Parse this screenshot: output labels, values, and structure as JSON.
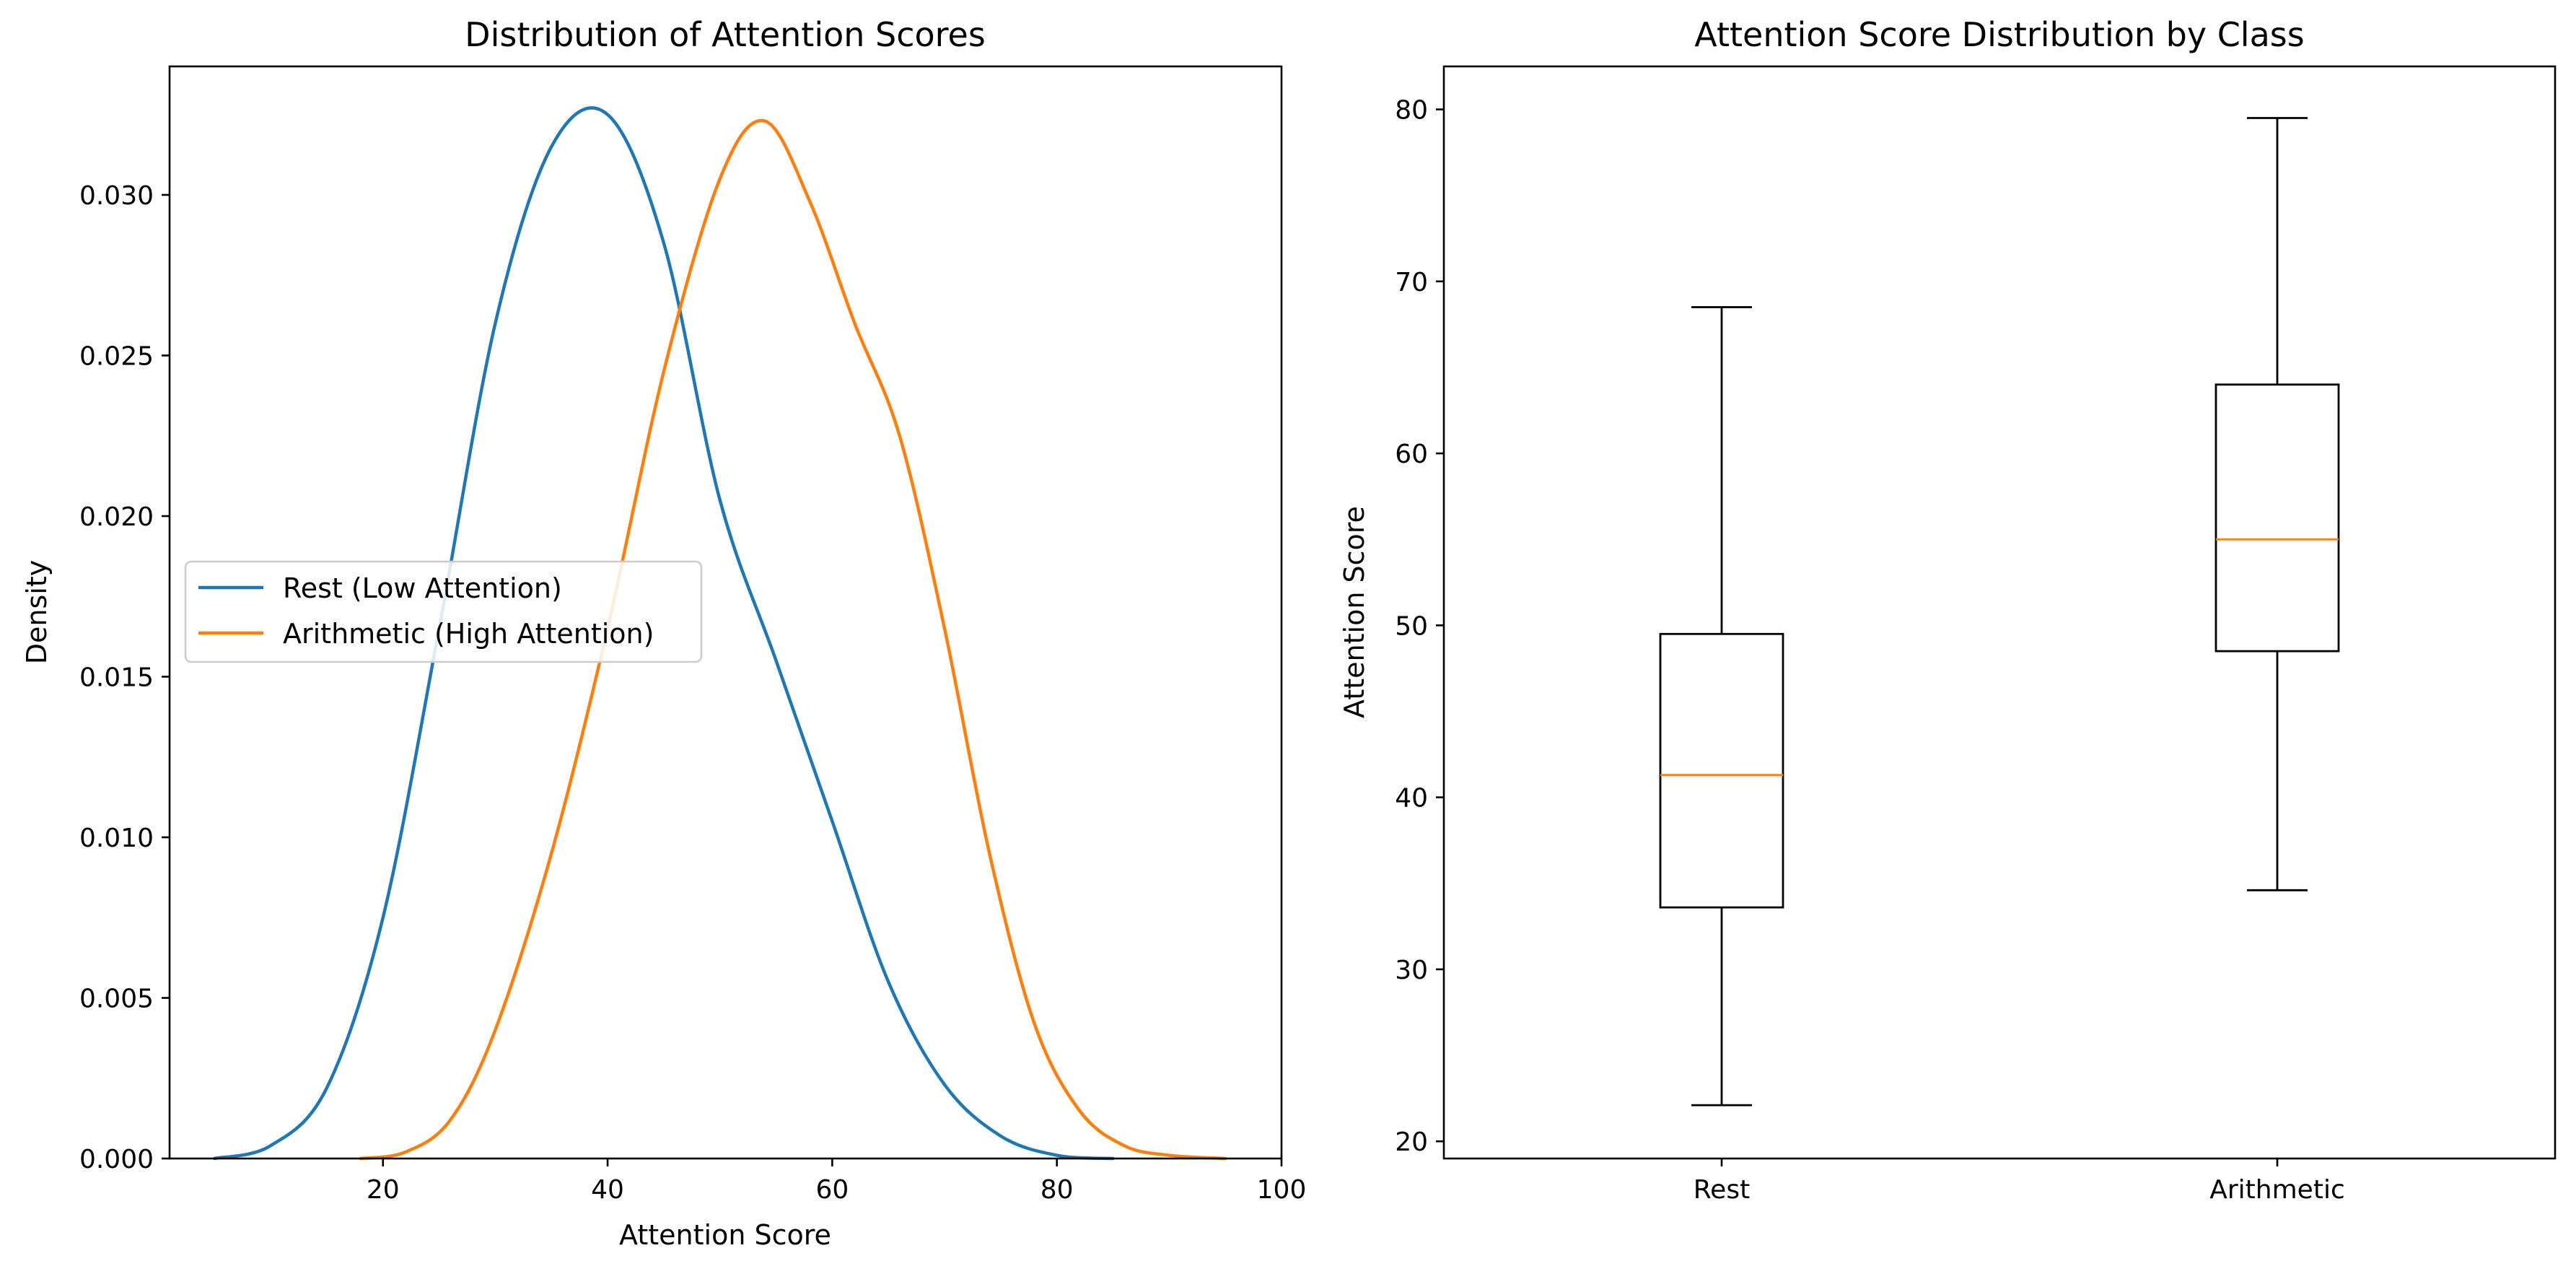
{
  "chart_data": [
    {
      "type": "line",
      "title": "Distribution of Attention Scores",
      "xlabel": "Attention Score",
      "ylabel": "Density",
      "xlim": [
        1,
        100
      ],
      "ylim": [
        0,
        0.034
      ],
      "xticks": [
        "20",
        "40",
        "60",
        "80",
        "100"
      ],
      "yticks": [
        "0.000",
        "0.005",
        "0.010",
        "0.015",
        "0.020",
        "0.025",
        "0.030"
      ],
      "grid": false,
      "legend_position": "center-left",
      "series": [
        {
          "name": "Rest (Low Attention)",
          "color": "#1f77b4",
          "x": [
            5,
            10,
            15,
            20,
            25,
            30,
            35,
            40,
            45,
            50,
            55,
            60,
            65,
            70,
            75,
            80,
            85
          ],
          "y": [
            0.0,
            0.0004,
            0.0022,
            0.0075,
            0.0165,
            0.026,
            0.0315,
            0.0325,
            0.0285,
            0.0205,
            0.0155,
            0.0105,
            0.0055,
            0.0023,
            0.0007,
            0.0001,
            0.0
          ]
        },
        {
          "name": "Arithmetic (High Attention)",
          "color": "#ff7f0e",
          "x": [
            18,
            22,
            26,
            30,
            35,
            40,
            45,
            50,
            54,
            58,
            62,
            66,
            70,
            74,
            78,
            82,
            86,
            90,
            95
          ],
          "y": [
            0.0,
            0.0002,
            0.0012,
            0.004,
            0.0095,
            0.0165,
            0.0245,
            0.0305,
            0.0323,
            0.0298,
            0.026,
            0.0225,
            0.0165,
            0.0095,
            0.0042,
            0.0015,
            0.0004,
            0.0001,
            0.0
          ]
        }
      ]
    },
    {
      "type": "box",
      "title": "Attention Score Distribution by Class",
      "xlabel": "",
      "ylabel": "Attention Score",
      "ylim": [
        19,
        82.5
      ],
      "yticks": [
        "20",
        "30",
        "40",
        "50",
        "60",
        "70",
        "80"
      ],
      "grid": false,
      "colors": {
        "box": "#000000",
        "median": "#ff7f0e"
      },
      "categories": [
        "Rest",
        "Arithmetic"
      ],
      "boxes": [
        {
          "category": "Rest",
          "whisker_low": 22.1,
          "q1": 33.6,
          "median": 41.3,
          "q3": 49.5,
          "whisker_high": 68.5
        },
        {
          "category": "Arithmetic",
          "whisker_low": 34.6,
          "q1": 48.5,
          "median": 55.0,
          "q3": 64.0,
          "whisker_high": 79.5
        }
      ]
    }
  ]
}
